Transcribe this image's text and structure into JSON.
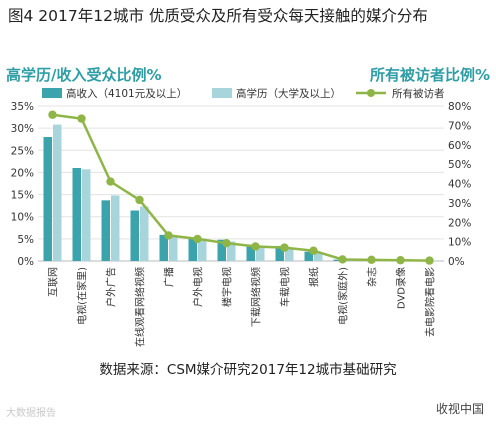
{
  "title": "图4 2017年12城市 优质受众及所有受众每天接触的媒介分布",
  "source": "数据来源：CSM媒介研究2017年12城市基础研究",
  "watermark_left": "大数据报告",
  "watermark_right": "收视中国",
  "colors": {
    "header_text": "#2e9ea6",
    "bar_income": "#3aa3ab",
    "bar_edu": "#a8d5dc",
    "line_all": "#8fb546",
    "axis_text": "#333333",
    "grid": "#e3e3e3"
  },
  "chart_data": {
    "type": "bar",
    "left_header": "高学历/收入受众比例%",
    "right_header": "所有被访者比例%",
    "categories": [
      "互联网",
      "电视(在家里)",
      "户外广告",
      "在线观看网络视频",
      "广播",
      "户外电视",
      "楼宇电视",
      "下载网络视频",
      "车载电视",
      "报纸",
      "电视(家庭外)",
      "杂志",
      "DVD录像",
      "去电影院看电影"
    ],
    "series": [
      {
        "name": "高收入（4101元及以上）",
        "type": "bar",
        "axis": "left",
        "values": [
          28,
          21,
          13.7,
          11.4,
          5.9,
          5.3,
          4.8,
          3.7,
          3.4,
          2.1,
          0.3,
          0.2,
          0.1,
          0.1
        ]
      },
      {
        "name": "高学历（大学及以上）",
        "type": "bar",
        "axis": "left",
        "values": [
          30.8,
          20.7,
          14.8,
          12.3,
          5.6,
          5.1,
          4.4,
          3.5,
          3.0,
          1.8,
          0.3,
          0.2,
          0.1,
          0.1
        ]
      },
      {
        "name": "所有被访者",
        "type": "line",
        "axis": "right",
        "values": [
          75.5,
          73.5,
          41,
          31.5,
          13.2,
          11.4,
          9.2,
          7.5,
          6.9,
          5.3,
          0.8,
          0.6,
          0.4,
          0.2
        ]
      }
    ],
    "left_axis": {
      "ylim": [
        0,
        35
      ],
      "ticks": [
        "0%",
        "5%",
        "10%",
        "15%",
        "20%",
        "25%",
        "30%",
        "35%"
      ]
    },
    "right_axis": {
      "ylim": [
        0,
        80
      ],
      "ticks": [
        "0%",
        "10%",
        "20%",
        "30%",
        "40%",
        "50%",
        "60%",
        "70%",
        "80%"
      ]
    },
    "grid": true,
    "legend_position": "top"
  }
}
